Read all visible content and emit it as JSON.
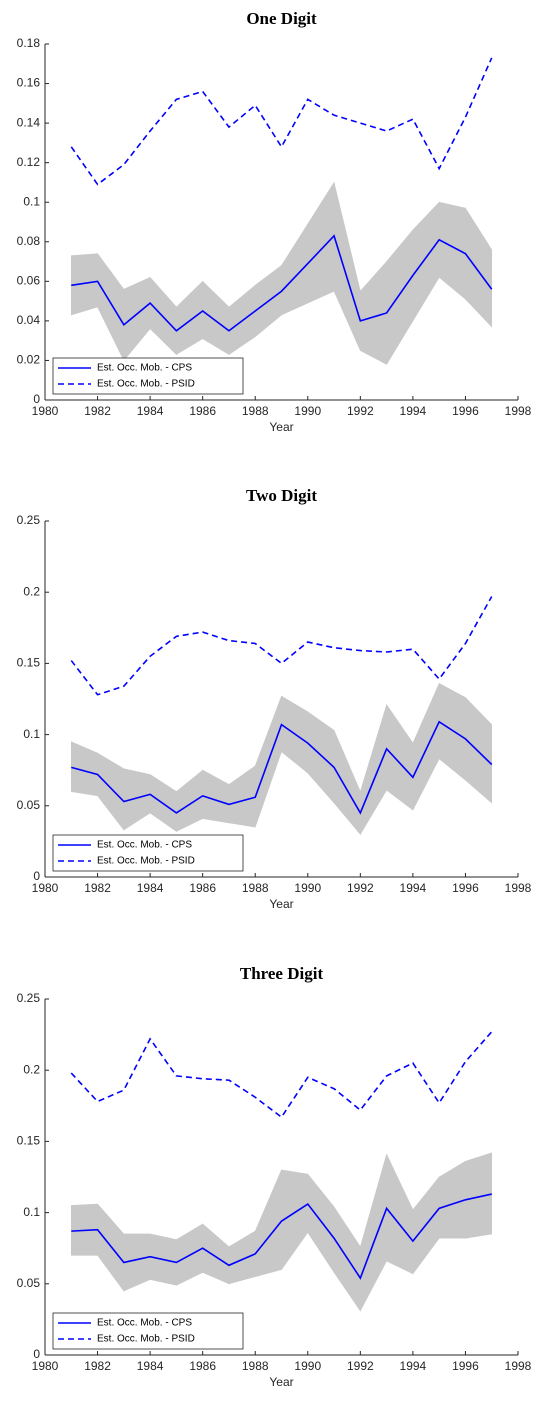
{
  "chart_data": [
    {
      "type": "line",
      "title": "One Digit",
      "xlabel": "Year",
      "x": [
        1981,
        1982,
        1983,
        1984,
        1985,
        1986,
        1987,
        1988,
        1989,
        1990,
        1991,
        1992,
        1993,
        1994,
        1995,
        1996,
        1997
      ],
      "xlim": [
        1980,
        1998
      ],
      "xticks": [
        1980,
        1982,
        1984,
        1986,
        1988,
        1990,
        1992,
        1994,
        1996,
        1998
      ],
      "ylim": [
        0,
        0.18
      ],
      "yticks": [
        0,
        0.02,
        0.04,
        0.06,
        0.08,
        0.1,
        0.12,
        0.14,
        0.16,
        0.18
      ],
      "band": {
        "color": "#c8c8c8",
        "upper": [
          0.073,
          0.074,
          0.056,
          0.062,
          0.047,
          0.06,
          0.047,
          0.058,
          0.068,
          0.089,
          0.11,
          0.055,
          0.07,
          0.086,
          0.1,
          0.097,
          0.076
        ],
        "lower": [
          0.043,
          0.047,
          0.02,
          0.036,
          0.023,
          0.031,
          0.023,
          0.032,
          0.043,
          0.049,
          0.055,
          0.025,
          0.018,
          0.04,
          0.062,
          0.051,
          0.037
        ]
      },
      "series": [
        {
          "name": "Est. Occ. Mob. - CPS",
          "color": "#0000ff",
          "style": "solid",
          "values": [
            0.058,
            0.06,
            0.038,
            0.049,
            0.035,
            0.045,
            0.035,
            0.045,
            0.055,
            0.069,
            0.083,
            0.04,
            0.044,
            0.063,
            0.081,
            0.074,
            0.056
          ]
        },
        {
          "name": "Est. Occ. Mob. - PSID",
          "color": "#0000ff",
          "style": "dashed",
          "values": [
            0.128,
            0.109,
            0.119,
            0.136,
            0.152,
            0.156,
            0.138,
            0.149,
            0.128,
            0.152,
            0.144,
            0.14,
            0.136,
            0.142,
            0.117,
            0.143,
            0.173
          ]
        }
      ],
      "legend": "lower left"
    },
    {
      "type": "line",
      "title": "Two Digit",
      "xlabel": "Year",
      "x": [
        1981,
        1982,
        1983,
        1984,
        1985,
        1986,
        1987,
        1988,
        1989,
        1990,
        1991,
        1992,
        1993,
        1994,
        1995,
        1996,
        1997
      ],
      "xlim": [
        1980,
        1998
      ],
      "xticks": [
        1980,
        1982,
        1984,
        1986,
        1988,
        1990,
        1992,
        1994,
        1996,
        1998
      ],
      "ylim": [
        0,
        0.25
      ],
      "yticks": [
        0,
        0.05,
        0.1,
        0.15,
        0.2,
        0.25
      ],
      "band": {
        "color": "#c8c8c8",
        "upper": [
          0.095,
          0.087,
          0.076,
          0.072,
          0.06,
          0.075,
          0.065,
          0.078,
          0.127,
          0.116,
          0.103,
          0.06,
          0.121,
          0.094,
          0.136,
          0.126,
          0.107
        ],
        "lower": [
          0.06,
          0.057,
          0.033,
          0.045,
          0.032,
          0.041,
          0.038,
          0.035,
          0.088,
          0.073,
          0.052,
          0.03,
          0.061,
          0.047,
          0.083,
          0.068,
          0.052
        ]
      },
      "series": [
        {
          "name": "Est. Occ. Mob. - CPS",
          "color": "#0000ff",
          "style": "solid",
          "values": [
            0.077,
            0.072,
            0.053,
            0.058,
            0.045,
            0.057,
            0.051,
            0.056,
            0.107,
            0.094,
            0.077,
            0.045,
            0.09,
            0.07,
            0.109,
            0.097,
            0.079
          ]
        },
        {
          "name": "Est. Occ. Mob. - PSID",
          "color": "#0000ff",
          "style": "dashed",
          "values": [
            0.152,
            0.128,
            0.134,
            0.155,
            0.169,
            0.172,
            0.166,
            0.164,
            0.15,
            0.165,
            0.161,
            0.159,
            0.158,
            0.16,
            0.139,
            0.164,
            0.197
          ]
        }
      ],
      "legend": "lower left"
    },
    {
      "type": "line",
      "title": "Three Digit",
      "xlabel": "Year",
      "x": [
        1981,
        1982,
        1983,
        1984,
        1985,
        1986,
        1987,
        1988,
        1989,
        1990,
        1991,
        1992,
        1993,
        1994,
        1995,
        1996,
        1997
      ],
      "xlim": [
        1980,
        1998
      ],
      "xticks": [
        1980,
        1982,
        1984,
        1986,
        1988,
        1990,
        1992,
        1994,
        1996,
        1998
      ],
      "ylim": [
        0,
        0.25
      ],
      "yticks": [
        0,
        0.05,
        0.1,
        0.15,
        0.2,
        0.25
      ],
      "band": {
        "color": "#c8c8c8",
        "upper": [
          0.105,
          0.106,
          0.085,
          0.085,
          0.081,
          0.092,
          0.076,
          0.087,
          0.13,
          0.127,
          0.104,
          0.076,
          0.141,
          0.102,
          0.125,
          0.136,
          0.142
        ],
        "lower": [
          0.07,
          0.07,
          0.045,
          0.053,
          0.049,
          0.058,
          0.05,
          0.055,
          0.06,
          0.086,
          0.058,
          0.031,
          0.066,
          0.057,
          0.082,
          0.082,
          0.085
        ]
      },
      "series": [
        {
          "name": "Est. Occ. Mob. - CPS",
          "color": "#0000ff",
          "style": "solid",
          "values": [
            0.087,
            0.088,
            0.065,
            0.069,
            0.065,
            0.075,
            0.063,
            0.071,
            0.094,
            0.106,
            0.082,
            0.054,
            0.103,
            0.08,
            0.103,
            0.109,
            0.113
          ]
        },
        {
          "name": "Est. Occ. Mob. - PSID",
          "color": "#0000ff",
          "style": "dashed",
          "values": [
            0.198,
            0.178,
            0.186,
            0.222,
            0.196,
            0.194,
            0.193,
            0.181,
            0.167,
            0.195,
            0.187,
            0.172,
            0.196,
            0.205,
            0.177,
            0.206,
            0.227
          ]
        }
      ],
      "legend": "lower left"
    }
  ]
}
